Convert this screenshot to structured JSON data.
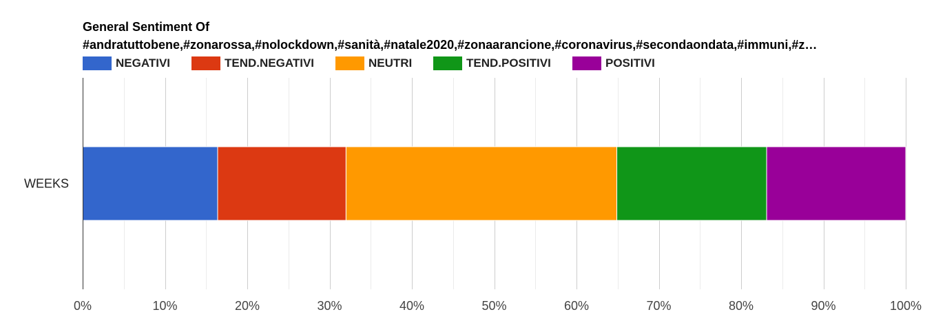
{
  "chart_data": {
    "type": "bar",
    "orientation": "horizontal",
    "stacked": "percent",
    "title_line1": "General Sentiment Of",
    "title_line2": "#andratuttobene,#zonarossa,#nolockdown,#sanità,#natale2020,#zonaarancione,#coronavirus,#secondaondata,#immuni,#z…",
    "categories": [
      "WEEKS"
    ],
    "series": [
      {
        "name": "NEGATIVI",
        "color": "#3366cc",
        "values": [
          16.4
        ]
      },
      {
        "name": "TEND.NEGATIVI",
        "color": "#dc3912",
        "values": [
          15.6
        ]
      },
      {
        "name": "NEUTRI",
        "color": "#ff9900",
        "values": [
          32.9
        ]
      },
      {
        "name": "TEND.POSITIVI",
        "color": "#109618",
        "values": [
          18.2
        ]
      },
      {
        "name": "POSITIVI",
        "color": "#990099",
        "values": [
          16.9
        ]
      }
    ],
    "xlim": [
      0,
      100
    ],
    "xticks": [
      "0%",
      "10%",
      "20%",
      "30%",
      "40%",
      "50%",
      "60%",
      "70%",
      "80%",
      "90%",
      "100%"
    ],
    "grid": true,
    "legend_position": "top"
  }
}
